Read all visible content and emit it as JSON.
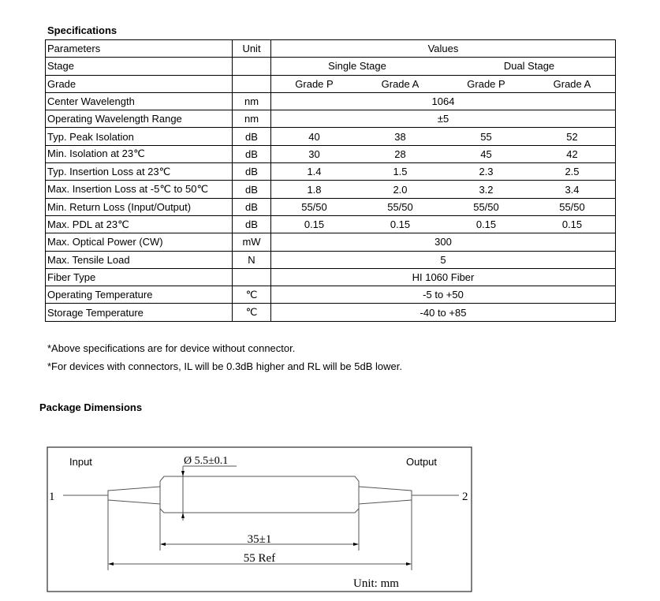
{
  "specs": {
    "title": "Specifications",
    "headers": {
      "parameters": "Parameters",
      "unit": "Unit",
      "values": "Values"
    },
    "stage": {
      "label": "Stage",
      "single": "Single Stage",
      "dual": "Dual Stage"
    },
    "grade": {
      "label": "Grade",
      "grades": [
        "Grade P",
        "Grade A",
        "Grade P",
        "Grade A"
      ]
    },
    "rows": [
      {
        "param": "Center Wavelength",
        "unit": "nm",
        "span": "1064"
      },
      {
        "param": "Operating Wavelength Range",
        "unit": "nm",
        "span": "±5"
      },
      {
        "param": "Typ. Peak Isolation",
        "unit": "dB",
        "values": [
          "40",
          "38",
          "55",
          "52"
        ]
      },
      {
        "param": "Min. Isolation at 23℃",
        "unit": "dB",
        "values": [
          "30",
          "28",
          "45",
          "42"
        ]
      },
      {
        "param": "Typ. Insertion Loss at 23℃",
        "unit": "dB",
        "values": [
          "1.4",
          "1.5",
          "2.3",
          "2.5"
        ]
      },
      {
        "param": "Max. Insertion Loss at -5℃ to 50℃",
        "unit": "dB",
        "values": [
          "1.8",
          "2.0",
          "3.2",
          "3.4"
        ]
      },
      {
        "param": "Min. Return Loss (Input/Output)",
        "unit": "dB",
        "values": [
          "55/50",
          "55/50",
          "55/50",
          "55/50"
        ]
      },
      {
        "param": "Max. PDL at 23℃",
        "unit": "dB",
        "values": [
          "0.15",
          "0.15",
          "0.15",
          "0.15"
        ]
      },
      {
        "param": "Max. Optical Power (CW)",
        "unit": "mW",
        "span": "300"
      },
      {
        "param": "Max. Tensile Load",
        "unit": "N",
        "span": "5"
      },
      {
        "param": "Fiber Type",
        "unit": "",
        "span": "HI 1060 Fiber"
      },
      {
        "param": "Operating Temperature",
        "unit": "℃",
        "span": "-5 to +50"
      },
      {
        "param": "Storage Temperature",
        "unit": "℃",
        "span": "-40 to +85"
      }
    ]
  },
  "notes": [
    "*Above specifications are for device without connector.",
    "*For devices with connectors, IL will be 0.3dB higher and RL will be 5dB lower."
  ],
  "package": {
    "title": "Package Dimensions",
    "input": "Input",
    "output": "Output",
    "port1": "1",
    "port2": "2",
    "diameter": "Ø 5.5±0.1",
    "body_length": "35±1",
    "total_length": "55 Ref",
    "unit": "Unit: mm"
  }
}
